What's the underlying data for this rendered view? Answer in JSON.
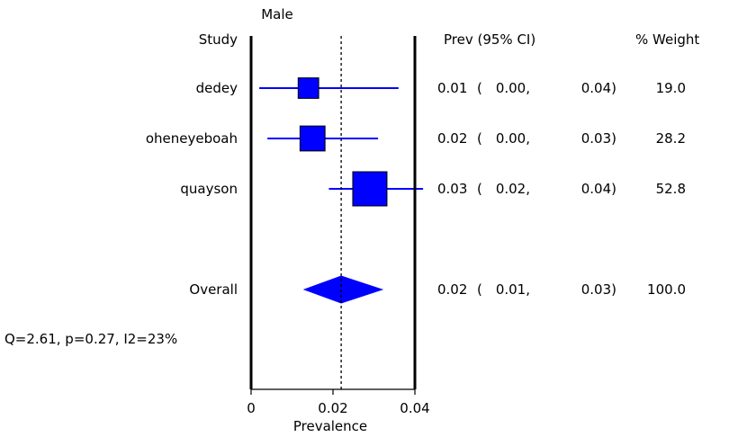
{
  "chart_data": {
    "type": "forest",
    "title": "Male",
    "xlabel": "Prevalence",
    "xlim": [
      0,
      0.04
    ],
    "xticks": [
      {
        "value": 0,
        "label": "0"
      },
      {
        "value": 0.02,
        "label": "0.02"
      },
      {
        "value": 0.04,
        "label": "0.04"
      }
    ],
    "reference_line": 0.022,
    "headers": {
      "study": "Study",
      "estimate": "Prev (95% CI)",
      "weight": "% Weight"
    },
    "studies": [
      {
        "name": "dedey",
        "estimate": 0.014,
        "lower": 0.002,
        "upper": 0.036,
        "weight": 19.0,
        "est_text": "0.01",
        "lo_text": "0.00,",
        "hi_text": "0.04)",
        "weight_text": "19.0"
      },
      {
        "name": "oheneyeboah",
        "estimate": 0.015,
        "lower": 0.004,
        "upper": 0.031,
        "weight": 28.2,
        "est_text": "0.02",
        "lo_text": "0.00,",
        "hi_text": "0.03)",
        "weight_text": "28.2"
      },
      {
        "name": "quayson",
        "estimate": 0.029,
        "lower": 0.019,
        "upper": 0.042,
        "weight": 52.8,
        "est_text": "0.03",
        "lo_text": "0.02,",
        "hi_text": "0.04)",
        "weight_text": "52.8"
      }
    ],
    "overall": {
      "name": "Overall",
      "estimate": 0.022,
      "lower": 0.013,
      "upper": 0.032,
      "est_text": "0.02",
      "lo_text": "0.01,",
      "hi_text": "0.03)",
      "weight_text": "100.0"
    },
    "heterogeneity": "Q=2.61, p=0.27, I2=23%",
    "colors": {
      "marker": "#0000ff",
      "axis": "#000000"
    }
  }
}
